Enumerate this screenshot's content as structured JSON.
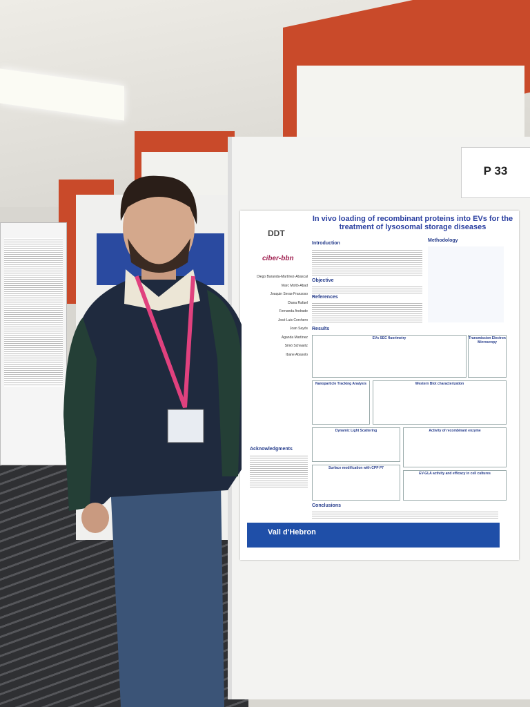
{
  "sign": {
    "label": "P 33"
  },
  "poster": {
    "title": "In vivo loading of recombinant proteins into EVs for the treatment of lysosomal storage diseases",
    "logos": [
      "DDT",
      "ciber-bbn"
    ],
    "authors": [
      "Diego Baranda-Martínez-Abascal",
      "Marc Moltó-Abad",
      "Joaquin Seras-Franzoso",
      "Diana Rafael",
      "Fernanda Andrade",
      "José Luis Corchero",
      "Joan Sayós",
      "Aganda Martínez",
      "Simó Schwartz",
      "Ibane Abasolo"
    ],
    "sections": {
      "introduction": "Introduction",
      "methodology": "Methodology",
      "objective": "Objective",
      "references": "References",
      "results": "Results",
      "acknowledgments": "Acknowledgments",
      "conclusions": "Conclusions"
    },
    "panels": [
      "EVs SEC fluorimetry",
      "Transmission Electron Microscopy",
      "Nanoparticle Tracking Analysis",
      "Western Blot characterization",
      "Dynamic Light Scattering",
      "Activity of recombinant enzyme",
      "Surface modification with CPP P7",
      "EV-GLA activity and efficacy in cell cultures"
    ],
    "footer": "Vall d'Hebron"
  }
}
